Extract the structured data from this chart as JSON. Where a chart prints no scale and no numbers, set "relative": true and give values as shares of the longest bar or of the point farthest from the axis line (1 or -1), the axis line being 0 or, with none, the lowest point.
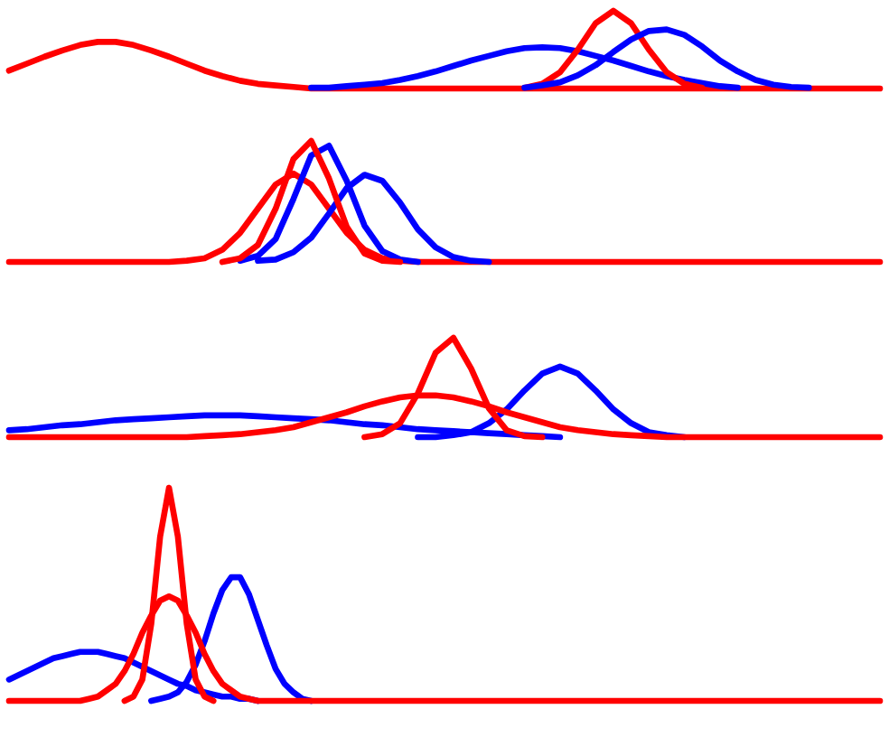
{
  "chart_data": [
    {
      "type": "line",
      "relative": true,
      "categories": [
        null,
        null,
        null,
        null,
        null,
        null,
        null,
        null,
        null,
        null,
        null,
        null,
        null,
        null,
        null,
        null,
        null,
        null,
        null,
        null,
        null,
        null,
        null,
        null,
        null,
        null,
        null,
        null,
        null,
        null,
        null,
        null,
        null,
        null,
        null,
        null,
        null,
        null,
        null,
        null,
        null,
        null,
        null,
        null,
        null,
        null,
        null,
        null,
        null,
        null
      ],
      "series": [
        {
          "color": "#ff0000",
          "values": [
            0.23,
            0.32,
            0.41,
            0.49,
            0.56,
            0.6,
            0.6,
            0.56,
            0.49,
            0.41,
            0.32,
            0.23,
            0.16,
            0.1,
            0.06,
            0.04,
            0.02,
            0,
            0,
            0,
            0,
            0,
            0,
            0,
            0,
            0,
            0,
            0,
            0,
            0,
            0,
            0,
            0,
            0,
            0,
            0,
            0,
            0,
            0,
            0,
            0,
            0,
            0,
            0,
            0,
            0,
            0,
            0,
            0,
            0
          ]
        },
        {
          "color": "#0000ff",
          "values": [
            null,
            null,
            null,
            null,
            null,
            null,
            null,
            null,
            null,
            null,
            null,
            null,
            null,
            null,
            null,
            null,
            null,
            0.01,
            0.01,
            0.03,
            0.05,
            0.07,
            0.11,
            0.16,
            0.22,
            0.29,
            0.36,
            0.42,
            0.48,
            0.52,
            0.53,
            0.52,
            0.48,
            0.42,
            0.36,
            0.29,
            0.22,
            0.16,
            0.11,
            0.07,
            0.03,
            0.01,
            null,
            null,
            null,
            null,
            null,
            null,
            null,
            null
          ]
        },
        {
          "color": "#ff0000",
          "values": [
            null,
            null,
            null,
            null,
            null,
            null,
            null,
            null,
            null,
            null,
            null,
            null,
            null,
            null,
            null,
            null,
            null,
            null,
            null,
            null,
            null,
            null,
            null,
            null,
            null,
            null,
            null,
            null,
            null,
            0.01,
            0.06,
            0.21,
            0.5,
            0.84,
            1,
            0.84,
            0.5,
            0.21,
            0.06,
            0.01,
            null,
            null,
            null,
            null,
            null,
            null,
            null,
            null,
            null,
            null
          ]
        },
        {
          "color": "#0000ff",
          "values": [
            null,
            null,
            null,
            null,
            null,
            null,
            null,
            null,
            null,
            null,
            null,
            null,
            null,
            null,
            null,
            null,
            null,
            null,
            null,
            null,
            null,
            null,
            null,
            null,
            null,
            null,
            null,
            null,
            null,
            0.01,
            0.04,
            0.08,
            0.17,
            0.3,
            0.47,
            0.63,
            0.74,
            0.76,
            0.69,
            0.54,
            0.36,
            0.22,
            0.11,
            0.05,
            0.02,
            0.01,
            null,
            null,
            null,
            null
          ]
        }
      ]
    },
    {
      "type": "line",
      "relative": true,
      "categories": [
        null,
        null,
        null,
        null,
        null,
        null,
        null,
        null,
        null,
        null,
        null,
        null,
        null,
        null,
        null,
        null,
        null,
        null,
        null,
        null,
        null,
        null,
        null,
        null,
        null,
        null,
        null,
        null,
        null,
        null,
        null,
        null,
        null,
        null,
        null,
        null,
        null,
        null,
        null,
        null,
        null,
        null,
        null,
        null,
        null,
        null,
        null,
        null,
        null,
        null
      ],
      "series": [
        {
          "color": "#ff0000",
          "values": [
            0,
            0,
            0,
            0,
            0,
            0,
            0,
            0,
            0,
            0,
            0.01,
            0.03,
            0.1,
            0.24,
            0.44,
            0.64,
            0.73,
            0.64,
            0.44,
            0.24,
            0.1,
            0.03,
            0.01,
            0,
            0,
            0,
            0,
            0,
            0,
            0,
            0,
            0,
            0,
            0,
            0,
            0,
            0,
            0,
            0,
            0,
            0,
            0,
            0,
            0,
            0,
            0,
            0,
            0,
            0,
            0
          ]
        },
        {
          "color": "#0000ff",
          "values": [
            null,
            null,
            null,
            null,
            null,
            null,
            null,
            null,
            null,
            null,
            null,
            null,
            null,
            null,
            0.01,
            0.02,
            0.08,
            0.2,
            0.4,
            0.61,
            0.72,
            0.67,
            0.49,
            0.27,
            0.12,
            0.04,
            0.01,
            0,
            null,
            null,
            null,
            null,
            null,
            null,
            null,
            null,
            null,
            null,
            null,
            null,
            null,
            null,
            null,
            null,
            null,
            null,
            null,
            null,
            null,
            null
          ]
        },
        {
          "color": "#0000ff",
          "values": [
            null,
            null,
            null,
            null,
            null,
            null,
            null,
            null,
            null,
            null,
            null,
            null,
            null,
            0.01,
            0.05,
            0.19,
            0.52,
            0.88,
            0.96,
            0.67,
            0.3,
            0.09,
            0.02,
            0,
            null,
            null,
            null,
            null,
            null,
            null,
            null,
            null,
            null,
            null,
            null,
            null,
            null,
            null,
            null,
            null,
            null,
            null,
            null,
            null,
            null,
            null,
            null,
            null,
            null,
            null
          ]
        },
        {
          "color": "#ff0000",
          "values": [
            null,
            null,
            null,
            null,
            null,
            null,
            null,
            null,
            null,
            null,
            null,
            null,
            0,
            0.03,
            0.14,
            0.44,
            0.85,
            1,
            0.69,
            0.29,
            0.07,
            0.01,
            0,
            null,
            null,
            null,
            null,
            null,
            null,
            null,
            null,
            null,
            null,
            null,
            null,
            null,
            null,
            null,
            null,
            null,
            null,
            null,
            null,
            null,
            null,
            null,
            null,
            null,
            null,
            null
          ]
        }
      ]
    },
    {
      "type": "line",
      "relative": true,
      "categories": [
        null,
        null,
        null,
        null,
        null,
        null,
        null,
        null,
        null,
        null,
        null,
        null,
        null,
        null,
        null,
        null,
        null,
        null,
        null,
        null,
        null,
        null,
        null,
        null,
        null,
        null,
        null,
        null,
        null,
        null,
        null,
        null,
        null,
        null,
        null,
        null,
        null,
        null,
        null,
        null,
        null,
        null,
        null,
        null,
        null,
        null,
        null,
        null,
        null,
        null
      ],
      "series": [
        {
          "color": "#0000ff",
          "values": [
            0.07,
            0.08,
            0.1,
            0.12,
            0.13,
            0.15,
            0.17,
            0.18,
            0.19,
            0.2,
            0.21,
            0.22,
            0.22,
            0.22,
            0.21,
            0.2,
            0.19,
            0.18,
            0.17,
            0.15,
            0.13,
            0.12,
            0.1,
            0.08,
            0.07,
            0.06,
            0.05,
            0.04,
            0.03,
            0.02,
            0.01,
            0,
            null,
            null,
            null,
            null,
            null,
            null,
            null,
            null,
            null,
            null,
            null,
            null,
            null,
            null,
            null,
            null,
            null,
            null
          ]
        },
        {
          "color": "#0000ff",
          "values": [
            null,
            null,
            null,
            null,
            null,
            null,
            null,
            null,
            null,
            null,
            null,
            null,
            null,
            null,
            null,
            null,
            null,
            null,
            null,
            null,
            null,
            null,
            null,
            0,
            0,
            0.02,
            0.05,
            0.14,
            0.28,
            0.47,
            0.64,
            0.71,
            0.64,
            0.47,
            0.28,
            0.14,
            0.05,
            0.02,
            0,
            null,
            null,
            null,
            null,
            null,
            null,
            null,
            null,
            null,
            null,
            null
          ]
        },
        {
          "color": "#ff0000",
          "values": [
            0,
            0,
            0,
            0,
            0,
            0,
            0,
            0,
            0,
            0,
            0,
            0.01,
            0.02,
            0.03,
            0.05,
            0.07,
            0.1,
            0.15,
            0.2,
            0.25,
            0.31,
            0.36,
            0.4,
            0.42,
            0.42,
            0.4,
            0.36,
            0.31,
            0.25,
            0.2,
            0.15,
            0.1,
            0.07,
            0.05,
            0.03,
            0.02,
            0.01,
            0,
            0,
            0,
            0,
            0,
            0,
            0,
            0,
            0,
            0,
            0,
            0,
            0
          ]
        },
        {
          "color": "#ff0000",
          "values": [
            null,
            null,
            null,
            null,
            null,
            null,
            null,
            null,
            null,
            null,
            null,
            null,
            null,
            null,
            null,
            null,
            null,
            null,
            null,
            null,
            0,
            0.03,
            0.14,
            0.44,
            0.85,
            1,
            0.69,
            0.29,
            0.07,
            0.01,
            0,
            null,
            null,
            null,
            null,
            null,
            null,
            null,
            null,
            null,
            null,
            null,
            null,
            null,
            null,
            null,
            null,
            null,
            null,
            null
          ]
        }
      ]
    },
    {
      "type": "line",
      "relative": true,
      "categories": [
        null,
        null,
        null,
        null,
        null,
        null,
        null,
        null,
        null,
        null,
        null,
        null,
        null,
        null,
        null,
        null,
        null,
        null,
        null,
        null,
        null,
        null,
        null,
        null,
        null,
        null,
        null,
        null,
        null,
        null,
        null,
        null,
        null,
        null,
        null,
        null,
        null,
        null,
        null,
        null,
        null,
        null,
        null,
        null,
        null,
        null,
        null,
        null,
        null,
        null,
        null,
        null,
        null,
        null,
        null,
        null,
        null,
        null,
        null,
        null,
        null,
        null,
        null,
        null,
        null,
        null,
        null,
        null,
        null,
        null,
        null,
        null,
        null,
        null,
        null,
        null,
        null,
        null,
        null,
        null,
        null,
        null,
        null,
        null,
        null,
        null,
        null,
        null,
        null,
        null,
        null,
        null,
        null,
        null,
        null,
        null,
        null,
        null,
        null
      ],
      "series": [
        {
          "color": "#0000ff",
          "values": [
            0.1,
            0.12,
            0.14,
            0.16,
            0.18,
            0.2,
            0.21,
            0.22,
            0.23,
            0.23,
            0.23,
            0.22,
            0.21,
            0.2,
            0.18,
            0.16,
            0.14,
            0.12,
            0.1,
            0.08,
            0.07,
            0.05,
            0.04,
            0.03,
            0.02,
            0.02,
            0.01,
            0.01,
            0,
            null,
            null,
            null,
            null,
            null,
            null,
            null,
            null,
            null,
            null,
            null,
            null,
            null,
            null,
            null,
            null,
            null,
            null,
            null,
            null,
            null,
            null,
            null,
            null,
            null,
            null,
            null,
            null,
            null,
            null,
            null,
            null,
            null,
            null,
            null,
            null,
            null,
            null,
            null,
            null,
            null,
            null,
            null,
            null,
            null,
            null,
            null,
            null,
            null,
            null,
            null,
            null,
            null,
            null,
            null,
            null,
            null,
            null,
            null,
            null,
            null,
            null,
            null,
            null,
            null,
            null,
            null,
            null,
            null,
            null
          ]
        },
        {
          "color": "#0000ff",
          "values": [
            null,
            null,
            null,
            null,
            null,
            null,
            null,
            null,
            null,
            null,
            null,
            null,
            null,
            null,
            null,
            null,
            0,
            0.01,
            0.02,
            0.04,
            0.09,
            0.17,
            0.28,
            0.41,
            0.52,
            0.58,
            0.58,
            0.5,
            0.38,
            0.26,
            0.15,
            0.08,
            0.04,
            0.01,
            0,
            null,
            null,
            null,
            null,
            null,
            null,
            null,
            null,
            null,
            null,
            null,
            null,
            null,
            null,
            null,
            null,
            null,
            null,
            null,
            null,
            null,
            null,
            null,
            null,
            null,
            null,
            null,
            null,
            null,
            null,
            null,
            null,
            null,
            null,
            null,
            null,
            null,
            null,
            null,
            null,
            null,
            null,
            null,
            null,
            null,
            null,
            null,
            null,
            null,
            null,
            null,
            null,
            null,
            null,
            null,
            null,
            null,
            null,
            null,
            null,
            null,
            null,
            null,
            null
          ]
        },
        {
          "color": "#ff0000",
          "values": [
            0,
            0,
            0,
            0,
            0,
            0,
            0,
            0,
            0,
            0.01,
            0.02,
            0.05,
            0.08,
            0.14,
            0.22,
            0.32,
            0.4,
            0.47,
            0.49,
            0.47,
            0.4,
            0.32,
            0.22,
            0.14,
            0.08,
            0.05,
            0.02,
            0.01,
            0,
            0,
            0,
            0,
            0,
            0,
            0,
            0,
            0,
            0,
            0,
            0,
            0,
            0,
            0,
            0,
            0,
            0,
            0,
            0,
            0,
            0,
            0,
            0,
            0,
            0,
            0,
            0,
            0,
            0,
            0,
            0,
            0,
            0,
            0,
            0,
            0,
            0,
            0,
            0,
            0,
            0,
            0,
            0,
            0,
            0,
            0,
            0,
            0,
            0,
            0,
            0,
            0,
            0,
            0,
            0,
            0,
            0,
            0,
            0,
            0,
            0,
            0,
            0,
            0,
            0,
            0,
            0,
            0,
            0,
            0
          ]
        },
        {
          "color": "#ff0000",
          "values": [
            null,
            null,
            null,
            null,
            null,
            null,
            null,
            null,
            null,
            null,
            null,
            null,
            null,
            0,
            0.02,
            0.1,
            0.36,
            0.77,
            1,
            0.77,
            0.36,
            0.1,
            0.02,
            0,
            null,
            null,
            null,
            null,
            null,
            null,
            null,
            null,
            null,
            null,
            null,
            null,
            null,
            null,
            null,
            null,
            null,
            null,
            null,
            null,
            null,
            null,
            null,
            null,
            null,
            null,
            null,
            null,
            null,
            null,
            null,
            null,
            null,
            null,
            null,
            null,
            null,
            null,
            null,
            null,
            null,
            null,
            null,
            null,
            null,
            null,
            null,
            null,
            null,
            null,
            null,
            null,
            null,
            null,
            null,
            null,
            null,
            null,
            null,
            null,
            null,
            null,
            null,
            null,
            null,
            null,
            null,
            null,
            null,
            null,
            null,
            null,
            null,
            null,
            null
          ]
        }
      ]
    }
  ]
}
